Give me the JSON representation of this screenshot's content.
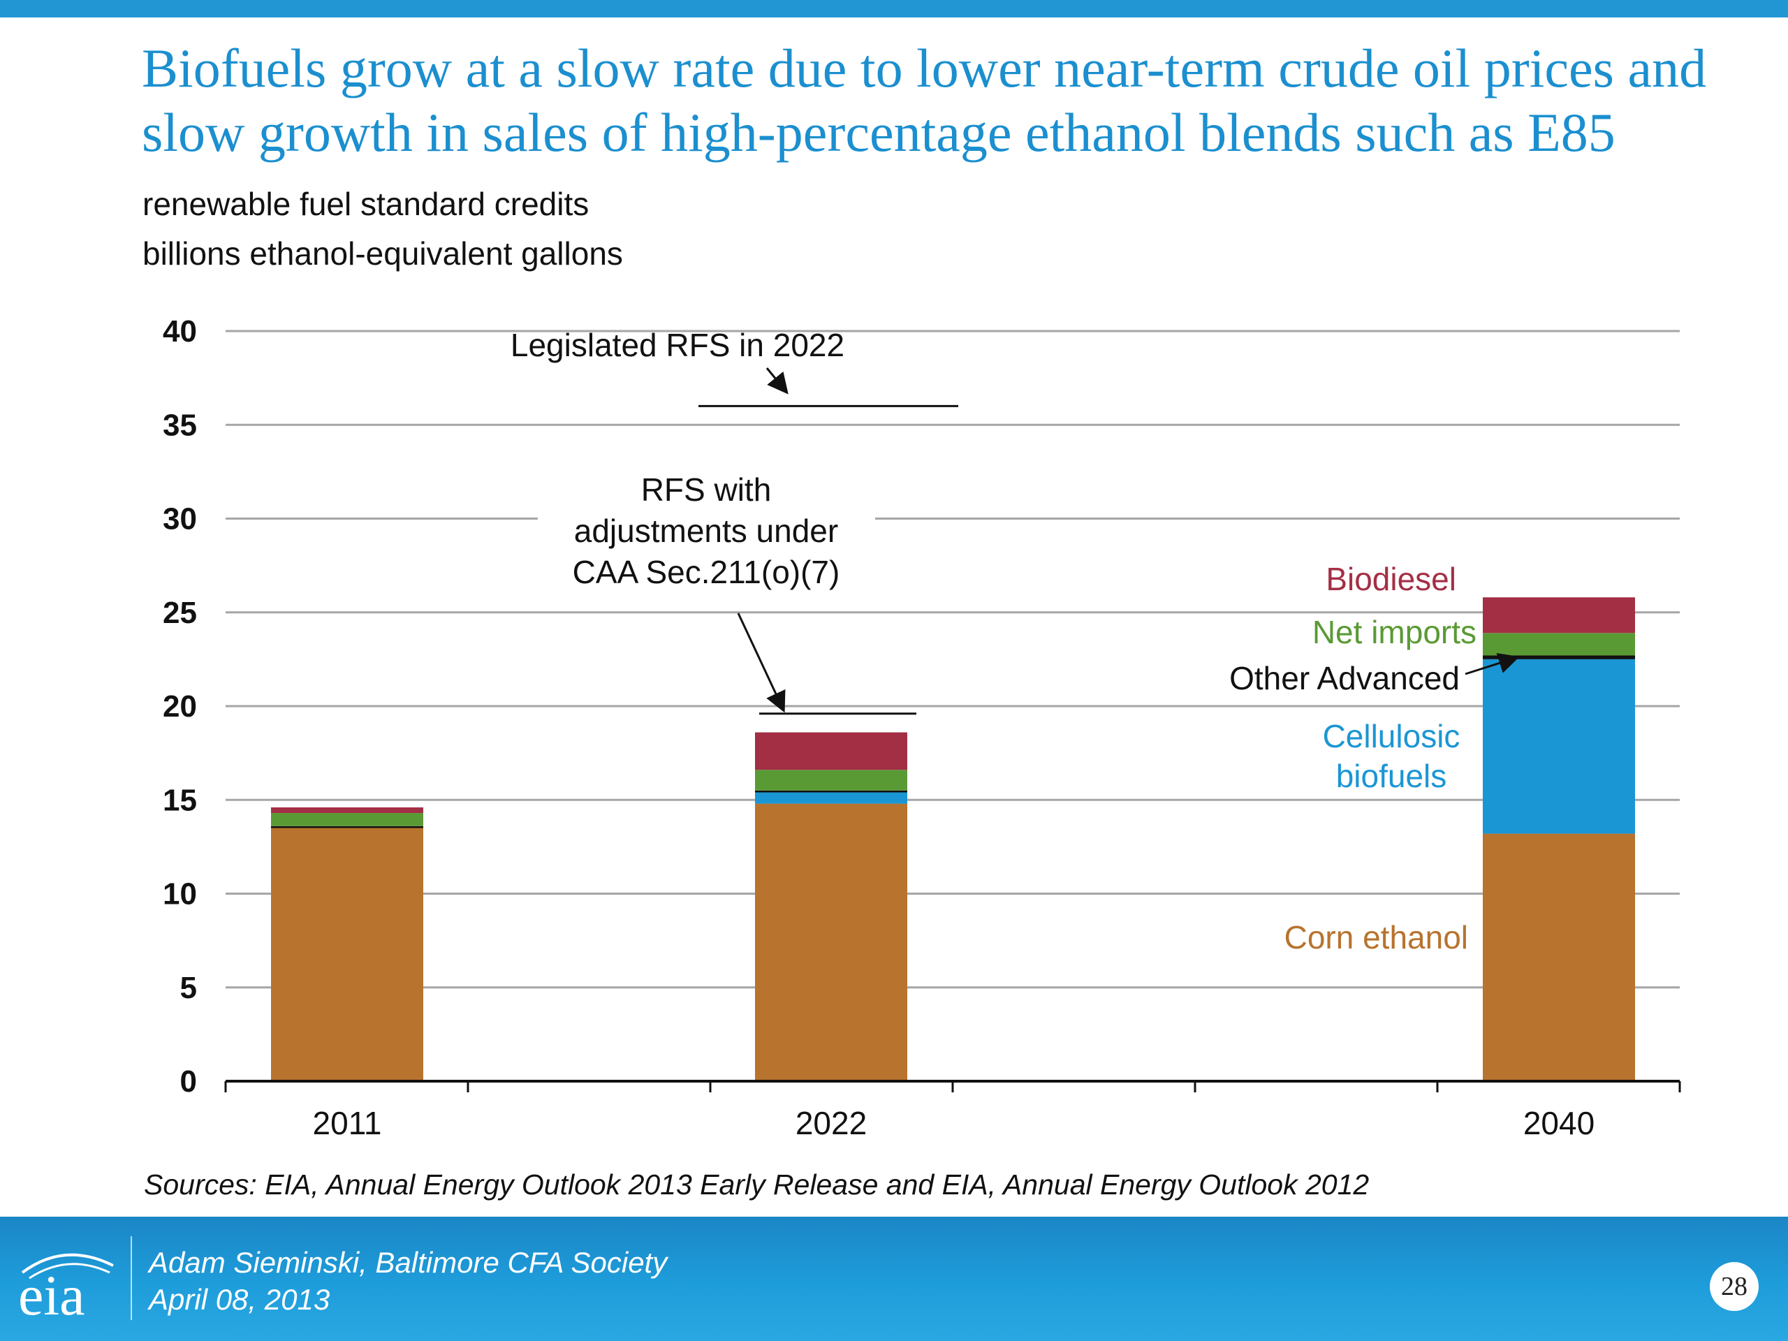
{
  "title": {
    "line1": "Biofuels grow at a slow rate due to lower near-term crude oil prices and",
    "line2": "slow growth in sales of high-percentage ethanol blends such as E85"
  },
  "subtitle": {
    "line1": "renewable fuel standard credits",
    "line2": "billions ethanol-equivalent gallons"
  },
  "chart_data": {
    "type": "bar",
    "stacked": true,
    "categories": [
      "2011",
      "2022",
      "2040"
    ],
    "ylim": [
      0,
      40
    ],
    "yticks": [
      "0",
      "5",
      "10",
      "15",
      "20",
      "25",
      "30",
      "35",
      "40"
    ],
    "grid": true,
    "series": [
      {
        "name": "Corn ethanol",
        "color": "#b8732e",
        "values": [
          13.5,
          14.8,
          13.2
        ]
      },
      {
        "name": "Cellulosic biofuels",
        "color": "#1b96d4",
        "values": [
          0.0,
          0.6,
          9.3
        ]
      },
      {
        "name": "Other Advanced",
        "color": "#111111",
        "values": [
          0.1,
          0.1,
          0.2
        ]
      },
      {
        "name": "Net imports",
        "color": "#5a9a35",
        "values": [
          0.7,
          1.1,
          1.2
        ]
      },
      {
        "name": "Biodiesel",
        "color": "#a32f45",
        "values": [
          0.3,
          2.0,
          1.9
        ]
      }
    ],
    "reference_lines": [
      {
        "label": "Legislated RFS in 2022",
        "value": 36
      },
      {
        "label": "RFS with adjustments under CAA Sec.211(o)(7)",
        "value": 19.6
      }
    ],
    "annotations": {
      "legislated": "Legislated RFS in 2022",
      "adjusted": [
        "RFS with",
        "adjustments under",
        "CAA Sec.211(o)(7)"
      ]
    },
    "series_labels": {
      "biodiesel": "Biodiesel",
      "net_imports": "Net imports",
      "other_advanced": "Other Advanced",
      "cellulosic": [
        "Cellulosic",
        "biofuels"
      ],
      "corn": "Corn ethanol"
    }
  },
  "source": "Sources: EIA, Annual Energy Outlook 2013 Early Release and EIA, Annual Energy Outlook 2012",
  "footer": {
    "logo_text": "eia",
    "presenter": "Adam Sieminski, Baltimore CFA Society",
    "date": "April 08, 2013",
    "page": "28"
  }
}
